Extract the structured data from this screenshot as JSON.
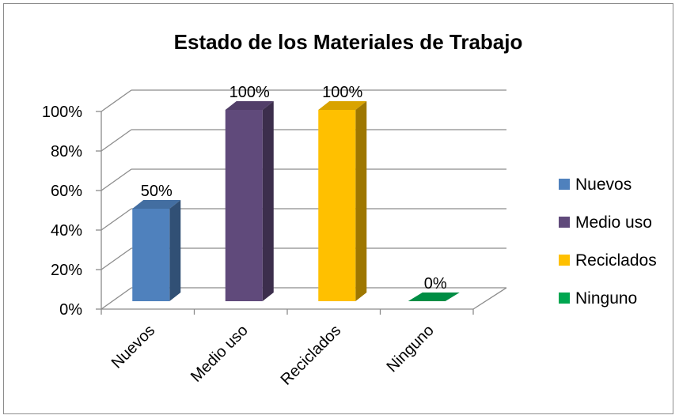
{
  "chart_data": {
    "type": "bar",
    "title": "Estado de  los Materiales  de Trabajo",
    "categories": [
      "Nuevos",
      "Medio uso",
      "Reciclados",
      "Ninguno"
    ],
    "values": [
      50,
      100,
      100,
      0
    ],
    "data_labels": [
      "50%",
      "100%",
      "100%",
      "0%"
    ],
    "colors": [
      "#4f81bd",
      "#604a7b",
      "#ffc000",
      "#00a650"
    ],
    "ylim": [
      0,
      100
    ],
    "yticks": [
      "0%",
      "20%",
      "40%",
      "60%",
      "80%",
      "100%"
    ],
    "grid": true,
    "legend_position": "right",
    "legend": [
      "Nuevos",
      "Medio uso",
      "Reciclados",
      "Ninguno"
    ],
    "xlabel": "",
    "ylabel": ""
  }
}
